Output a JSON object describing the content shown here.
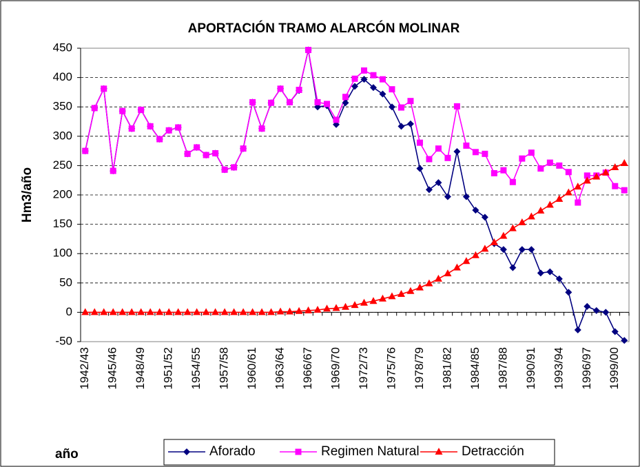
{
  "chart_data": {
    "type": "line",
    "title": "APORTACIÓN TRAMO ALARCÓN MOLINAR",
    "y_label": "Hm3/año",
    "x_label": "año",
    "categories": [
      "1942/43",
      null,
      null,
      "1945/46",
      null,
      null,
      "1948/49",
      null,
      null,
      "1951/52",
      null,
      null,
      "1954/55",
      null,
      null,
      "1957/58",
      null,
      null,
      "1960/61",
      null,
      null,
      "1963/64",
      null,
      null,
      "1966/67",
      null,
      null,
      "1969/70",
      null,
      null,
      "1972/73",
      null,
      null,
      "1975/76",
      null,
      null,
      "1978/79",
      null,
      null,
      "1981/82",
      null,
      null,
      "1984/85",
      null,
      null,
      "1987/88",
      null,
      null,
      "1990/91",
      null,
      null,
      "1993/94",
      null,
      null,
      "1996/97",
      null,
      null,
      "1999/00",
      null
    ],
    "series": [
      {
        "name": "Aforado",
        "color": "#000080",
        "marker": "diamond",
        "values": [
          275,
          348,
          381,
          241,
          343,
          313,
          345,
          317,
          295,
          310,
          315,
          270,
          281,
          268,
          271,
          243,
          247,
          279,
          358,
          313,
          357,
          381,
          358,
          378,
          447,
          350,
          352,
          320,
          357,
          385,
          397,
          383,
          372,
          350,
          317,
          321,
          245,
          209,
          221,
          197,
          274,
          197,
          174,
          162,
          117,
          107,
          76,
          107,
          107,
          67,
          69,
          57,
          34,
          -30,
          10,
          3,
          0,
          -33,
          -48
        ]
      },
      {
        "name": "Regimen Natural",
        "color": "#ff00ff",
        "marker": "square",
        "values": [
          275,
          348,
          381,
          241,
          343,
          313,
          345,
          317,
          295,
          310,
          315,
          270,
          281,
          268,
          271,
          243,
          247,
          279,
          358,
          313,
          357,
          381,
          358,
          379,
          447,
          358,
          355,
          328,
          367,
          398,
          412,
          404,
          397,
          380,
          349,
          360,
          289,
          261,
          279,
          263,
          351,
          284,
          273,
          270,
          237,
          242,
          222,
          262,
          272,
          245,
          255,
          250,
          239,
          187,
          233,
          233,
          238,
          215,
          208
        ]
      },
      {
        "name": "Detracción",
        "color": "#ff0000",
        "marker": "triangle",
        "values": [
          0,
          0,
          0,
          0,
          0,
          0,
          0,
          0,
          0,
          0,
          0,
          0,
          0,
          0,
          0,
          0,
          0,
          0,
          0,
          0,
          0,
          1,
          1,
          2,
          3,
          4,
          6,
          7,
          9,
          12,
          16,
          19,
          23,
          27,
          31,
          36,
          42,
          49,
          57,
          66,
          76,
          87,
          97,
          108,
          119,
          130,
          143,
          153,
          163,
          173,
          183,
          193,
          204,
          214,
          224,
          231,
          238,
          247,
          254
        ]
      }
    ],
    "ylim": [
      -50,
      450
    ],
    "yticks": [
      -50,
      0,
      50,
      100,
      150,
      200,
      250,
      300,
      350,
      400,
      450
    ],
    "grid": true,
    "legend": "bottom"
  }
}
